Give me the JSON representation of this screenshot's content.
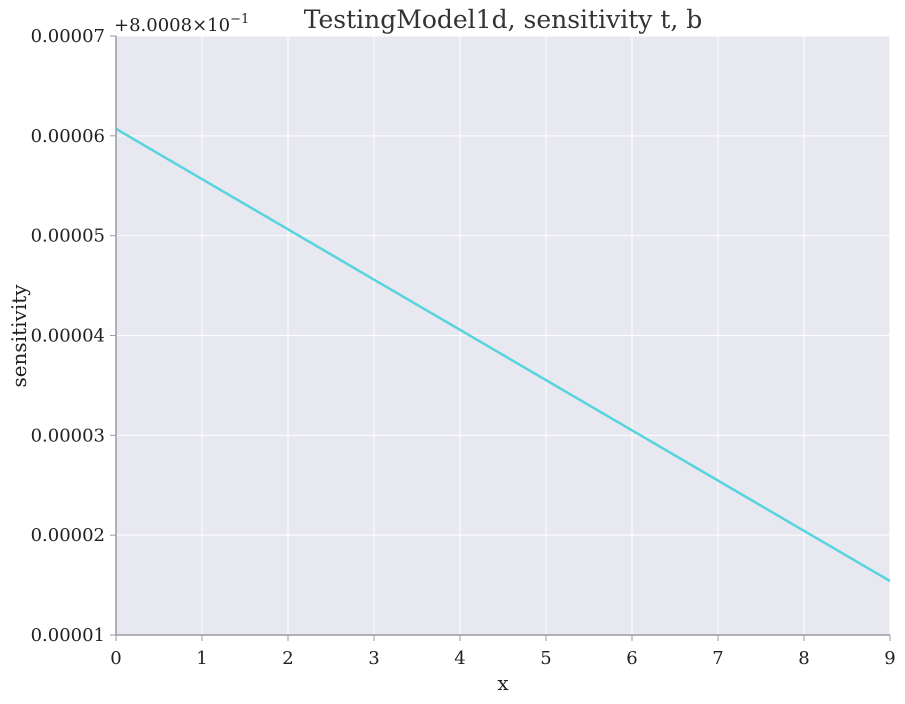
{
  "chart_data": {
    "type": "line",
    "title": "TestingModel1d, sensitivity t, b",
    "xlabel": "x",
    "ylabel": "sensitivity",
    "offset_label": "+8.0008×10",
    "offset_exponent": "−1",
    "xlim": [
      0,
      9
    ],
    "ylim": [
      1e-05,
      7e-05
    ],
    "x_ticks": [
      0,
      1,
      2,
      3,
      4,
      5,
      6,
      7,
      8,
      9
    ],
    "x_tick_labels": [
      "0",
      "1",
      "2",
      "3",
      "4",
      "5",
      "6",
      "7",
      "8",
      "9"
    ],
    "y_ticks": [
      1e-05,
      2e-05,
      3e-05,
      4e-05,
      5e-05,
      6e-05,
      7e-05
    ],
    "y_tick_labels": [
      "0.00001",
      "0.00002",
      "0.00003",
      "0.00004",
      "0.00005",
      "0.00006",
      "0.00007"
    ],
    "grid": true,
    "series": [
      {
        "color": "#57d4de",
        "x": [
          0,
          9
        ],
        "y": [
          6.07e-05,
          1.54e-05
        ]
      }
    ],
    "colors": {
      "plot_background": "#e8e8f0",
      "grid": "#ffffff",
      "axis": "#9a9aa2"
    }
  }
}
